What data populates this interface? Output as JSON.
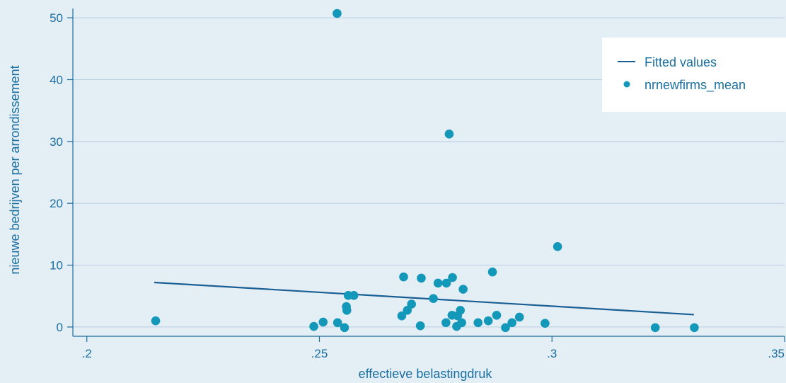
{
  "chart_data": {
    "type": "scatter",
    "xlabel": "effectieve belastingdruk",
    "ylabel": "nieuwe bedrijven per arrondissement",
    "xlim": [
      0.197,
      0.35
    ],
    "ylim": [
      -1.5,
      51.5
    ],
    "x_ticks": [
      0.2,
      0.25,
      0.3,
      0.35
    ],
    "x_tick_labels": [
      ".2",
      ".25",
      ".3",
      ".35"
    ],
    "y_ticks": [
      0,
      10,
      20,
      30,
      40,
      50
    ],
    "y_tick_labels": [
      "0",
      "10",
      "20",
      "30",
      "40",
      "50"
    ],
    "grid": "horizontal",
    "legend_position": "top-right",
    "colors": {
      "background": "#e4eef5",
      "grid": "#b7cde0",
      "axis": "#1a6fa0",
      "text": "#1a6fa0",
      "fitted_line": "#1a5f93",
      "points": "#1498b9",
      "legend_box": "#ffffff"
    },
    "series": [
      {
        "name": "Fitted values",
        "type": "line",
        "points": [
          {
            "x": 0.2145,
            "y": 7.2
          },
          {
            "x": 0.3305,
            "y": 2.0
          }
        ]
      },
      {
        "name": "nrnewfirms_mean",
        "type": "scatter",
        "points": [
          {
            "x": 0.2148,
            "y": 1.0
          },
          {
            "x": 0.2488,
            "y": 0.1
          },
          {
            "x": 0.2508,
            "y": 0.8
          },
          {
            "x": 0.2538,
            "y": 50.7
          },
          {
            "x": 0.2539,
            "y": 0.7
          },
          {
            "x": 0.2554,
            "y": -0.1
          },
          {
            "x": 0.2558,
            "y": 3.3
          },
          {
            "x": 0.2559,
            "y": 2.7
          },
          {
            "x": 0.2562,
            "y": 5.1
          },
          {
            "x": 0.2574,
            "y": 5.1
          },
          {
            "x": 0.2677,
            "y": 1.8
          },
          {
            "x": 0.2681,
            "y": 8.1
          },
          {
            "x": 0.2689,
            "y": 2.7
          },
          {
            "x": 0.2698,
            "y": 3.7
          },
          {
            "x": 0.2717,
            "y": 0.2
          },
          {
            "x": 0.2719,
            "y": 7.9
          },
          {
            "x": 0.2745,
            "y": 4.6
          },
          {
            "x": 0.2755,
            "y": 7.1
          },
          {
            "x": 0.2772,
            "y": 0.7
          },
          {
            "x": 0.2773,
            "y": 7.1
          },
          {
            "x": 0.2779,
            "y": 31.2
          },
          {
            "x": 0.2785,
            "y": 1.9
          },
          {
            "x": 0.2786,
            "y": 8.0
          },
          {
            "x": 0.2795,
            "y": 0.1
          },
          {
            "x": 0.2797,
            "y": 1.8
          },
          {
            "x": 0.2803,
            "y": 2.7
          },
          {
            "x": 0.2806,
            "y": 0.7
          },
          {
            "x": 0.2809,
            "y": 6.1
          },
          {
            "x": 0.2841,
            "y": 0.7
          },
          {
            "x": 0.2863,
            "y": 1.0
          },
          {
            "x": 0.2872,
            "y": 8.9
          },
          {
            "x": 0.2881,
            "y": 1.9
          },
          {
            "x": 0.29,
            "y": -0.1
          },
          {
            "x": 0.2914,
            "y": 0.7
          },
          {
            "x": 0.293,
            "y": 1.6
          },
          {
            "x": 0.2985,
            "y": 0.6
          },
          {
            "x": 0.3012,
            "y": 13.0
          },
          {
            "x": 0.3222,
            "y": -0.1
          },
          {
            "x": 0.3306,
            "y": -0.1
          }
        ]
      }
    ]
  }
}
